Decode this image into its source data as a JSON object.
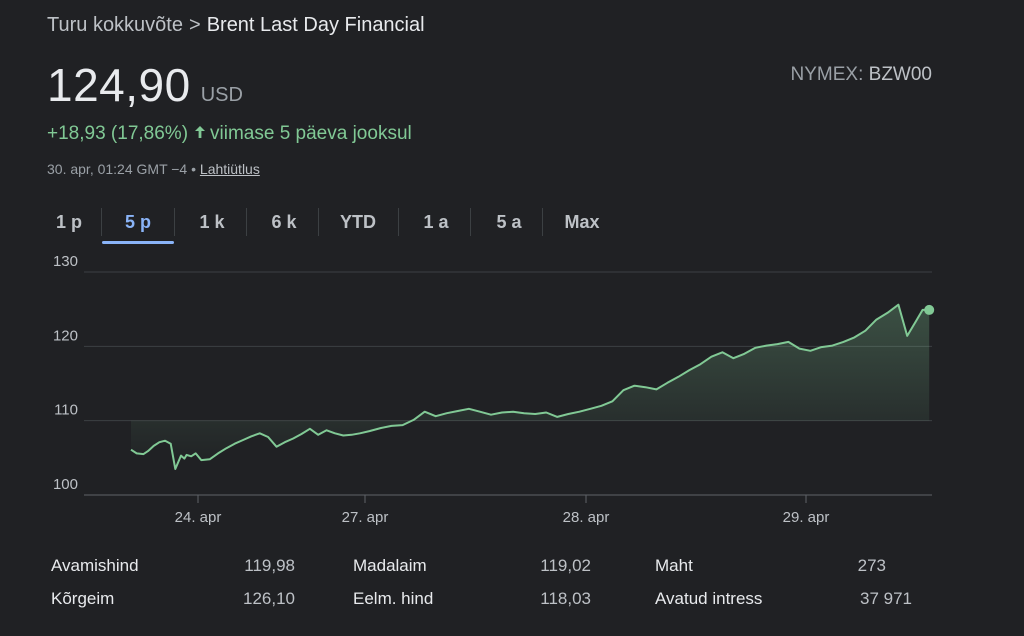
{
  "breadcrumb": {
    "parent": "Turu kokkuvõte",
    "separator": ">",
    "current": "Brent Last Day Financial"
  },
  "quote": {
    "price": "124,90",
    "currency": "USD",
    "exchange_label": "NYMEX:",
    "ticker": "BZW00",
    "change": "+18,93 (17,86%)",
    "change_period": "viimase 5 päeva jooksul",
    "timestamp": "30. apr, 01:24 GMT −4 •",
    "disclaimer_link": "Lahtiütlus",
    "colors": {
      "up": "#81c995",
      "accent": "#8ab4f8"
    }
  },
  "tabs": [
    {
      "label": "1 p",
      "active": false
    },
    {
      "label": "5 p",
      "active": true
    },
    {
      "label": "1 k",
      "active": false
    },
    {
      "label": "6 k",
      "active": false
    },
    {
      "label": "YTD",
      "active": false
    },
    {
      "label": "1 a",
      "active": false
    },
    {
      "label": "5 a",
      "active": false
    },
    {
      "label": "Max",
      "active": false
    }
  ],
  "chart_data": {
    "type": "area",
    "ylim": [
      100,
      130
    ],
    "y_ticks": [
      "130",
      "120",
      "110",
      "100"
    ],
    "x_ticks": [
      {
        "label": "24. apr",
        "x": 1
      },
      {
        "label": "27. apr",
        "x": 2
      },
      {
        "label": "28. apr",
        "x": 3
      },
      {
        "label": "29. apr",
        "x": 4
      }
    ],
    "xlim": [
      0.41,
      4.56
    ],
    "grid": true,
    "legend": "none",
    "line_color": "#81c995",
    "series": [
      {
        "x": [
          0.41,
          0.46,
          0.52,
          0.56,
          0.61,
          0.66,
          0.71,
          0.76,
          0.8,
          0.85,
          0.88,
          0.9,
          0.94,
          0.98,
          1.02,
          1.07,
          1.12,
          1.17,
          1.22,
          1.27,
          1.32,
          1.37,
          1.42,
          1.47,
          1.52,
          1.57,
          1.62,
          1.67,
          1.72,
          1.77,
          1.82,
          1.87,
          1.92,
          1.97,
          2.02,
          2.07,
          2.12,
          2.17,
          2.22,
          2.27,
          2.32,
          2.37,
          2.42,
          2.47,
          2.52,
          2.57,
          2.62,
          2.67,
          2.72,
          2.77,
          2.82,
          2.87,
          2.92,
          2.97,
          3.02,
          3.07,
          3.12,
          3.17,
          3.22,
          3.27,
          3.32,
          3.37,
          3.42,
          3.47,
          3.52,
          3.57,
          3.62,
          3.67,
          3.72,
          3.77,
          3.82,
          3.87,
          3.92,
          3.97,
          4.02,
          4.07,
          4.12,
          4.17,
          4.22,
          4.27,
          4.32,
          4.37,
          4.42,
          4.46,
          4.5,
          4.53,
          4.56
        ],
        "values": [
          106.1,
          105.6,
          105.5,
          105.9,
          106.6,
          107.1,
          107.3,
          106.9,
          103.5,
          105.3,
          104.9,
          105.4,
          105.2,
          105.6,
          104.7,
          104.8,
          105.6,
          106.3,
          106.9,
          107.4,
          107.9,
          108.3,
          107.8,
          106.5,
          107.1,
          107.6,
          108.2,
          108.9,
          108.1,
          108.7,
          108.3,
          108.0,
          108.1,
          108.3,
          108.6,
          109.0,
          109.3,
          109.4,
          110.1,
          111.2,
          110.6,
          111.0,
          111.3,
          111.6,
          111.2,
          110.8,
          111.1,
          111.2,
          111.0,
          110.9,
          111.1,
          110.5,
          110.9,
          111.2,
          111.6,
          112.0,
          112.6,
          114.1,
          114.7,
          114.5,
          114.2,
          115.1,
          115.9,
          116.8,
          117.6,
          118.6,
          119.2,
          118.4,
          119.0,
          119.8,
          120.1,
          120.3,
          120.6,
          119.7,
          119.4,
          119.9,
          120.1,
          120.6,
          121.2,
          122.1,
          123.6,
          124.5,
          125.6,
          121.4,
          123.4,
          124.9,
          124.9
        ]
      }
    ],
    "last_value": 124.9
  },
  "stats": [
    {
      "label": "Avamishind",
      "value": "119,98"
    },
    {
      "label": "Madalaim",
      "value": "119,02"
    },
    {
      "label": "Maht",
      "value": "273"
    },
    {
      "label": "Kõrgeim",
      "value": "126,10"
    },
    {
      "label": "Eelm. hind",
      "value": "118,03"
    },
    {
      "label": "Avatud intress",
      "value": "37 971"
    }
  ]
}
